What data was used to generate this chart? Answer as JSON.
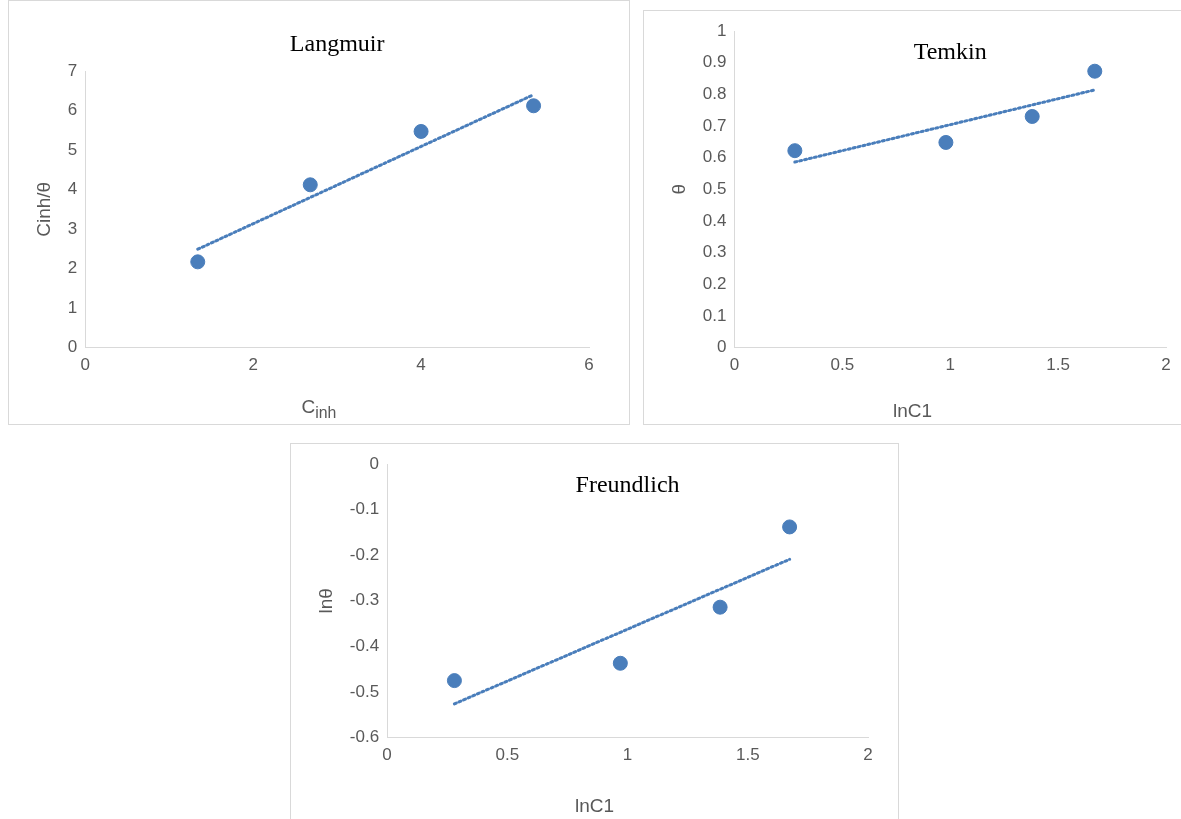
{
  "chart_data": [
    {
      "type": "scatter",
      "title": "Langmuir",
      "xlabel": "C$_{inh}$",
      "ylabel": "Cinh/θ",
      "xlim": [
        0,
        6
      ],
      "xticks": [
        0,
        2,
        4,
        6
      ],
      "ylim": [
        0,
        7
      ],
      "yticks": [
        0,
        1,
        2,
        3,
        4,
        5,
        6,
        7
      ],
      "grid": false,
      "marker": "circle",
      "legend": false,
      "series": [
        {
          "type": "scatter",
          "color": "#4a7ebb",
          "x": [
            1.34,
            2.68,
            4.0,
            5.34
          ],
          "values": [
            2.17,
            4.12,
            5.47,
            6.12
          ]
        },
        {
          "type": "line",
          "color": "#4a7ebb",
          "line_style": "dotted",
          "marker": "none",
          "x": [
            1.34,
            5.34
          ],
          "values": [
            2.49,
            6.4
          ]
        }
      ]
    },
    {
      "type": "scatter",
      "title": "Temkin",
      "xlabel": "lnC1",
      "ylabel": "θ",
      "xlim": [
        0,
        2
      ],
      "xticks": [
        0,
        0.5,
        1,
        1.5,
        2
      ],
      "ylim": [
        0,
        1
      ],
      "yticks": [
        0,
        0.1,
        0.2,
        0.3,
        0.4,
        0.5,
        0.6,
        0.7,
        0.8,
        0.9,
        1
      ],
      "grid": false,
      "marker": "circle",
      "legend": false,
      "series": [
        {
          "type": "scatter",
          "color": "#4a7ebb",
          "x": [
            0.28,
            0.98,
            1.38,
            1.67
          ],
          "values": [
            0.622,
            0.648,
            0.73,
            0.873
          ]
        },
        {
          "type": "line",
          "color": "#4a7ebb",
          "line_style": "dotted",
          "marker": "none",
          "x": [
            0.28,
            1.67
          ],
          "values": [
            0.586,
            0.814
          ]
        }
      ]
    },
    {
      "type": "scatter",
      "title": "Freundlich",
      "xlabel": "lnC1",
      "ylabel": "lnθ",
      "xlim": [
        0,
        2
      ],
      "xticks": [
        0,
        0.5,
        1,
        1.5,
        2
      ],
      "ylim": [
        -0.6,
        0
      ],
      "yticks": [
        -0.6,
        -0.5,
        -0.4,
        -0.3,
        -0.2,
        -0.1,
        0
      ],
      "grid": false,
      "marker": "circle",
      "legend": false,
      "series": [
        {
          "type": "scatter",
          "color": "#4a7ebb",
          "x": [
            0.28,
            0.97,
            1.385,
            1.674
          ],
          "values": [
            -0.475,
            -0.437,
            -0.314,
            -0.138
          ]
        },
        {
          "type": "line",
          "color": "#4a7ebb",
          "line_style": "dotted",
          "marker": "none",
          "x": [
            0.28,
            1.674
          ],
          "values": [
            -0.526,
            -0.209
          ]
        }
      ]
    }
  ]
}
